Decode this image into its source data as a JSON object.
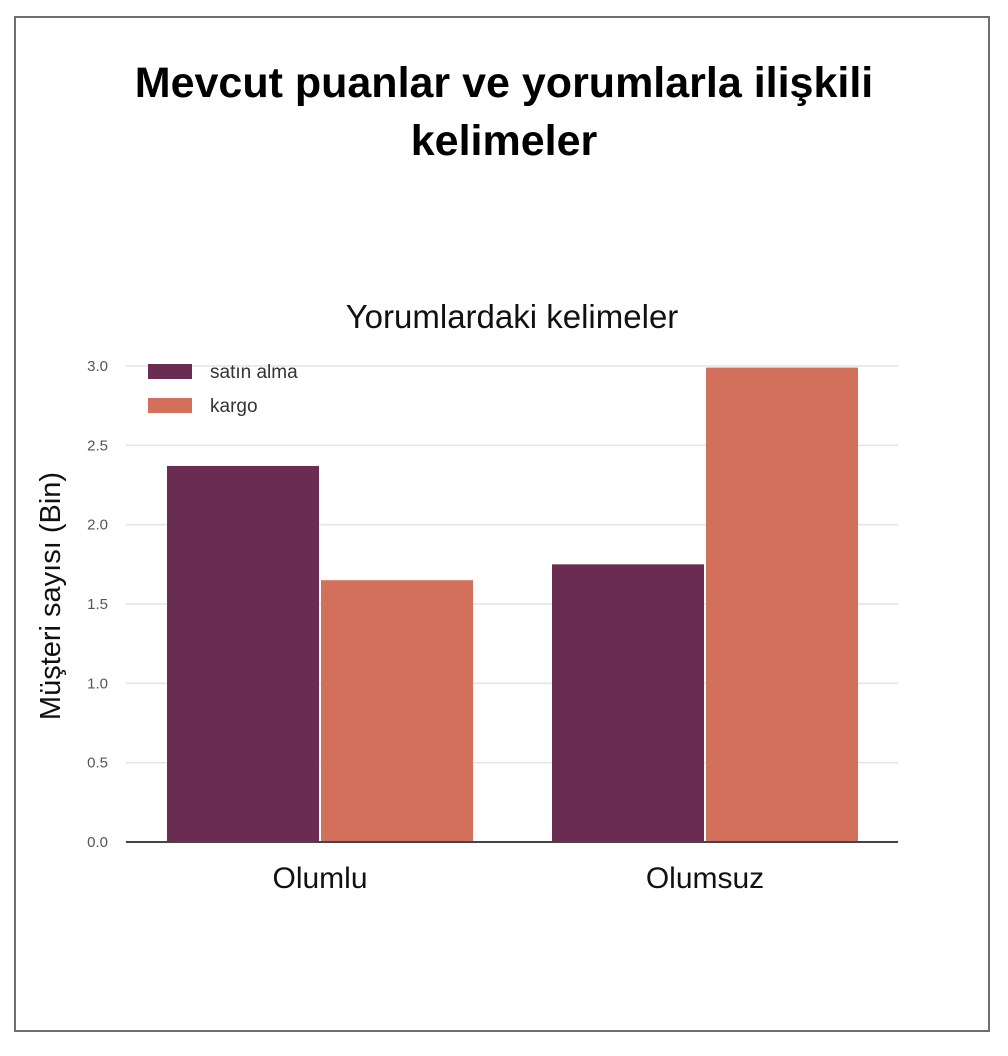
{
  "page": {
    "title_lines": [
      "Mevcut puanlar ve yorumlarla ilişkili",
      "kelimeler"
    ]
  },
  "chart_data": {
    "type": "bar",
    "title": "Yorumlardaki kelimeler",
    "xlabel": "",
    "ylabel": "Müşteri sayısı (Bin)",
    "categories": [
      "Olumlu",
      "Olumsuz"
    ],
    "series": [
      {
        "name": "satın alma",
        "values": [
          2.37,
          1.75
        ],
        "color": "#6b2c52"
      },
      {
        "name": "kargo",
        "values": [
          1.65,
          2.99
        ],
        "color": "#d2705b"
      }
    ],
    "ylim": [
      0,
      3.0
    ],
    "yticks": [
      "0.0",
      "0.5",
      "1.0",
      "1.5",
      "2.0",
      "2.5",
      "3.0"
    ],
    "grid": true,
    "legend_position": "top-left"
  }
}
